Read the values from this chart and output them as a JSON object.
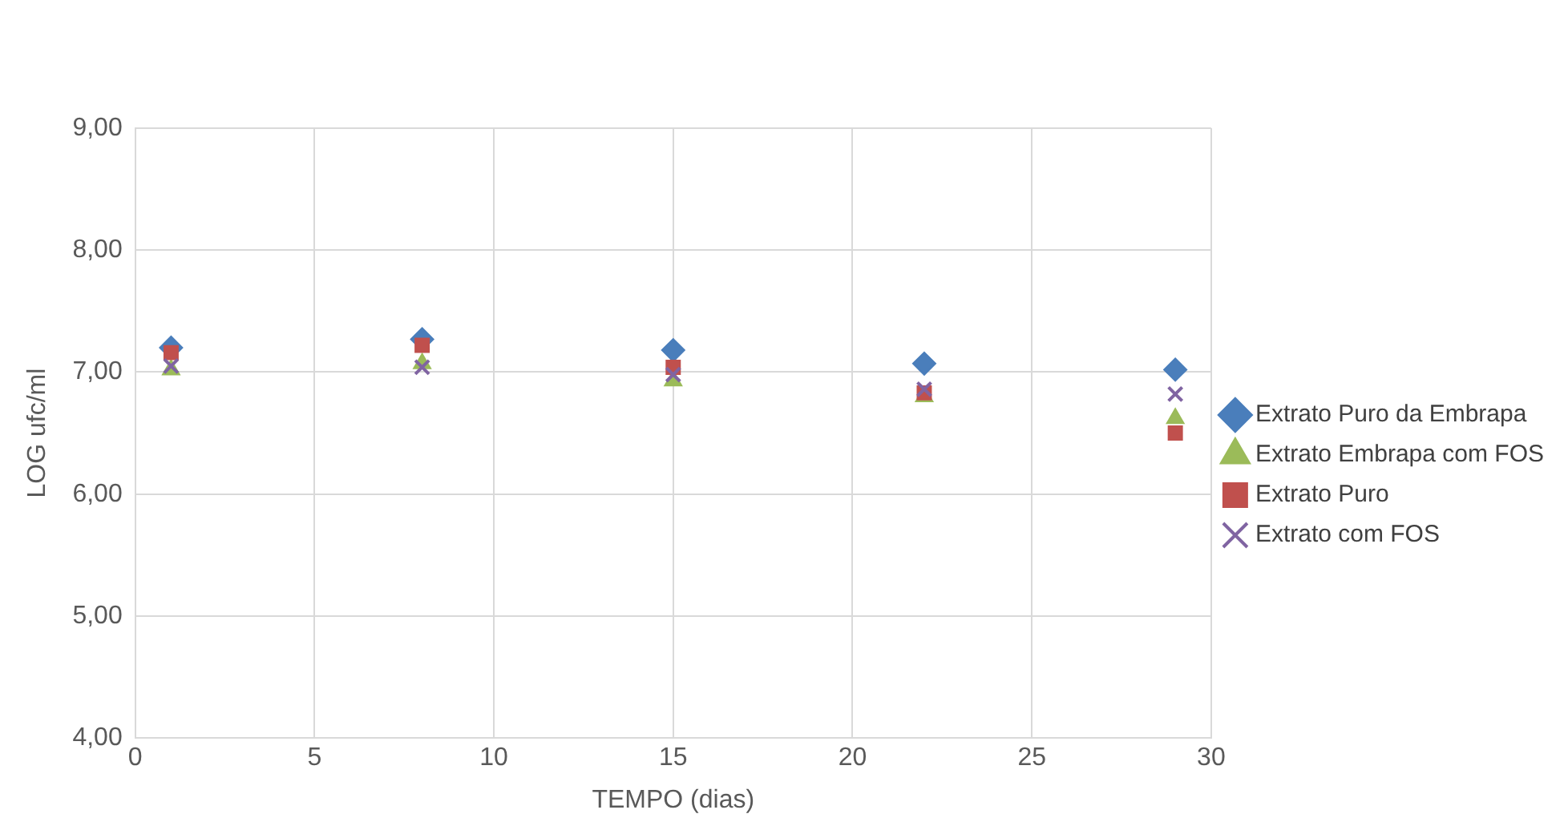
{
  "chart_data": {
    "type": "scatter",
    "xlabel": "TEMPO (dias)",
    "ylabel": "LOG ufc/ml",
    "x": [
      1,
      8,
      15,
      22,
      29
    ],
    "series": [
      {
        "name": "Extrato Puro da Embrapa",
        "color": "#4a7ebb",
        "marker": "diamond",
        "values": [
          7.2,
          7.27,
          7.18,
          7.07,
          7.02
        ]
      },
      {
        "name": "Extrato Embrapa com FOS",
        "color": "#9bbb59",
        "marker": "triangle",
        "values": [
          7.02,
          7.07,
          6.93,
          6.8,
          6.62
        ]
      },
      {
        "name": "Extrato Puro",
        "color": "#c0504d",
        "marker": "square",
        "values": [
          7.16,
          7.22,
          7.04,
          6.83,
          6.5
        ]
      },
      {
        "name": "Extrato com FOS",
        "color": "#8064a2",
        "marker": "cross",
        "values": [
          7.05,
          7.04,
          6.98,
          6.86,
          6.82
        ]
      }
    ],
    "xlim": [
      0,
      30
    ],
    "xticks": [
      0,
      5,
      10,
      15,
      20,
      25,
      30
    ],
    "ylim": [
      4,
      9
    ],
    "yticks": [
      {
        "value": 4,
        "label": "4,00"
      },
      {
        "value": 5,
        "label": "5,00"
      },
      {
        "value": 6,
        "label": "6,00"
      },
      {
        "value": 7,
        "label": "7,00"
      },
      {
        "value": 8,
        "label": "8,00"
      },
      {
        "value": 9,
        "label": "9,00"
      }
    ],
    "grid": true,
    "legend": "right"
  }
}
